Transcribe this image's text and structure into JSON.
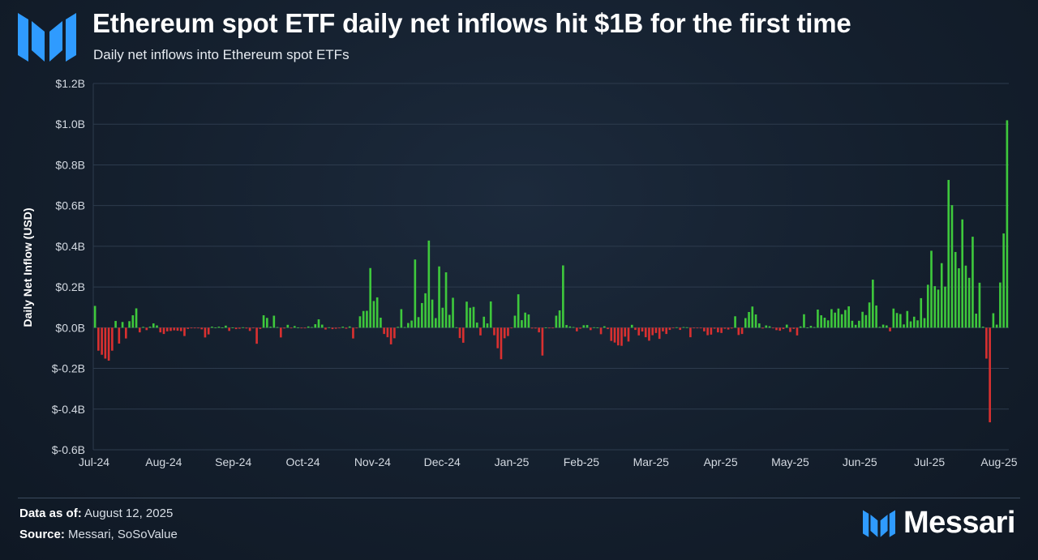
{
  "header": {
    "title": "Ethereum spot ETF daily net inflows hit $1B for the first time",
    "subtitle": "Daily net inflows into Ethereum spot ETFs"
  },
  "footer": {
    "data_as_of_label": "Data as of:",
    "data_as_of_value": "August 12, 2025",
    "source_label": "Source:",
    "source_value": "Messari, SoSoValue"
  },
  "brand": {
    "name": "Messari",
    "logo_icon": "messari-logo-icon"
  },
  "colors": {
    "positive": "#3ec83c",
    "negative": "#d93030",
    "grid": "#2d3b4d",
    "axis_text": "#d4dae2",
    "logo": "#2f9bff"
  },
  "chart_data": {
    "type": "bar",
    "title": "Ethereum spot ETF daily net inflows hit $1B for the first time",
    "subtitle": "Daily net inflows into Ethereum spot ETFs",
    "ylabel": "Daily Net Inflow (USD)",
    "xlabel": "",
    "units": "USD billions",
    "ylim": [
      -0.6,
      1.2
    ],
    "yticks": [
      1.2,
      1.0,
      0.8,
      0.6,
      0.4,
      0.2,
      0.0,
      -0.2,
      -0.4,
      -0.6
    ],
    "ytick_labels": [
      "$1.2B",
      "$1.0B",
      "$0.8B",
      "$0.6B",
      "$0.4B",
      "$0.2B",
      "$0.0B",
      "$-0.2B",
      "$-0.4B",
      "$-0.6B"
    ],
    "xtick_labels": [
      "Jul-24",
      "Aug-24",
      "Sep-24",
      "Oct-24",
      "Nov-24",
      "Dec-24",
      "Jan-25",
      "Feb-25",
      "Mar-25",
      "Apr-25",
      "May-25",
      "Jun-25",
      "Jul-25",
      "Aug-25"
    ],
    "grid": true,
    "legend": "none",
    "values": [
      0.107,
      -0.113,
      -0.133,
      -0.152,
      -0.162,
      -0.113,
      0.033,
      -0.078,
      0.028,
      -0.053,
      0.032,
      0.061,
      0.095,
      -0.023,
      0.004,
      -0.012,
      0.005,
      0.021,
      0.011,
      -0.023,
      -0.031,
      -0.018,
      -0.016,
      -0.013,
      -0.015,
      -0.017,
      -0.041,
      -0.006,
      -0.002,
      -0.003,
      -0.003,
      -0.008,
      -0.048,
      -0.033,
      0.005,
      0.001,
      0.005,
      0.001,
      0.01,
      -0.016,
      0.001,
      -0.007,
      -0.005,
      0.002,
      -0.004,
      -0.016,
      -0.001,
      -0.079,
      -0.006,
      0.061,
      0.048,
      0.005,
      0.059,
      0.003,
      -0.048,
      -0.004,
      0.014,
      -0.001,
      0.008,
      0.001,
      -0.001,
      -0.001,
      0.006,
      0.003,
      0.017,
      0.041,
      0.015,
      -0.009,
      0.002,
      -0.007,
      -0.005,
      -0.001,
      0.005,
      -0.005,
      0.006,
      -0.053,
      -0.001,
      0.056,
      0.082,
      0.083,
      0.293,
      0.131,
      0.149,
      0.049,
      -0.031,
      -0.047,
      -0.082,
      -0.052,
      0.004,
      0.091,
      0.003,
      0.023,
      0.035,
      0.335,
      0.052,
      0.121,
      0.169,
      0.428,
      0.138,
      0.047,
      0.301,
      0.098,
      0.272,
      0.063,
      0.147,
      0.002,
      -0.051,
      -0.074,
      0.128,
      0.098,
      0.102,
      0.025,
      -0.038,
      0.054,
      0.021,
      0.129,
      -0.037,
      -0.101,
      -0.155,
      -0.052,
      -0.041,
      -0.003,
      0.059,
      0.164,
      0.037,
      0.074,
      0.065,
      -0.004,
      -0.004,
      -0.023,
      -0.137,
      0.001,
      -0.001,
      -0.003,
      0.059,
      0.085,
      0.306,
      0.013,
      0.006,
      0.003,
      -0.018,
      -0.005,
      0.012,
      0.013,
      -0.012,
      0.002,
      0.001,
      -0.032,
      0.007,
      -0.007,
      -0.065,
      -0.073,
      -0.087,
      -0.089,
      -0.044,
      -0.068,
      0.014,
      -0.011,
      -0.038,
      -0.019,
      -0.047,
      -0.064,
      -0.037,
      -0.026,
      -0.055,
      -0.018,
      -0.031,
      -0.011,
      -0.003,
      0.002,
      -0.011,
      0.003,
      0.002,
      -0.047,
      -0.002,
      -0.001,
      -0.002,
      -0.018,
      -0.037,
      -0.034,
      -0.005,
      -0.023,
      -0.026,
      -0.005,
      -0.009,
      -0.004,
      0.056,
      -0.036,
      -0.031,
      0.047,
      0.077,
      0.104,
      0.065,
      0.021,
      -0.004,
      0.011,
      0.007,
      -0.002,
      -0.012,
      -0.015,
      -0.007,
      0.015,
      -0.021,
      -0.006,
      -0.038,
      0.006,
      0.066,
      0.001,
      0.009,
      0.003,
      0.089,
      0.061,
      0.049,
      0.036,
      0.091,
      0.074,
      0.094,
      0.066,
      0.087,
      0.105,
      0.034,
      0.014,
      0.034,
      0.078,
      0.062,
      0.124,
      0.236,
      0.109,
      0.004,
      0.015,
      0.011,
      -0.018,
      0.094,
      0.072,
      0.067,
      0.016,
      0.082,
      0.031,
      0.054,
      0.036,
      0.145,
      0.047,
      0.211,
      0.378,
      0.204,
      0.187,
      0.317,
      0.202,
      0.726,
      0.602,
      0.372,
      0.292,
      0.532,
      0.305,
      0.245,
      0.447,
      0.069,
      0.221,
      0.005,
      -0.152,
      -0.465,
      0.071,
      0.015,
      0.222,
      0.463,
      1.019
    ]
  }
}
